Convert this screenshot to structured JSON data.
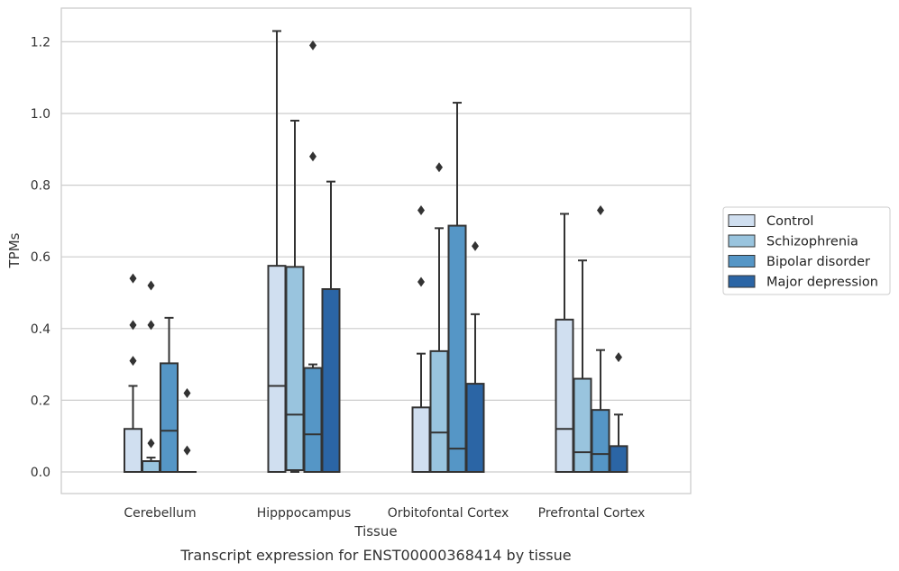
{
  "chart_data": {
    "type": "box",
    "caption": "Transcript expression for ENST00000368414 by tissue",
    "xlabel": "Tissue",
    "ylabel": "TPMs",
    "ylim": [
      -0.06,
      1.29
    ],
    "yticks": [
      "0.0",
      "0.2",
      "0.4",
      "0.6",
      "0.8",
      "1.0",
      "1.2"
    ],
    "grid": "horizontal",
    "legend_position": "right",
    "categories": [
      "Cerebellum",
      "Hipppocampus",
      "Orbitofontal Cortex",
      "Prefrontal Cortex"
    ],
    "series": [
      {
        "name": "Control",
        "color": "#d0dff0",
        "boxes": [
          {
            "q1": 0.0,
            "median": 0.0,
            "q3": 0.12,
            "whisker_low": 0.0,
            "whisker_high": 0.24,
            "outliers": [
              0.31,
              0.41,
              0.54
            ]
          },
          {
            "q1": 0.0,
            "median": 0.24,
            "q3": 0.575,
            "whisker_low": 0.0,
            "whisker_high": 1.23,
            "outliers": []
          },
          {
            "q1": 0.0,
            "median": 0.0,
            "q3": 0.18,
            "whisker_low": 0.0,
            "whisker_high": 0.33,
            "outliers": [
              0.53,
              0.73
            ]
          },
          {
            "q1": 0.0,
            "median": 0.12,
            "q3": 0.425,
            "whisker_low": 0.0,
            "whisker_high": 0.72,
            "outliers": []
          }
        ]
      },
      {
        "name": "Schizophrenia",
        "color": "#99c4de",
        "boxes": [
          {
            "q1": 0.0,
            "median": 0.03,
            "q3": 0.03,
            "whisker_low": 0.0,
            "whisker_high": 0.04,
            "outliers": [
              0.08,
              0.41,
              0.52
            ]
          },
          {
            "q1": 0.005,
            "median": 0.16,
            "q3": 0.572,
            "whisker_low": 0.0,
            "whisker_high": 0.98,
            "outliers": []
          },
          {
            "q1": 0.0,
            "median": 0.11,
            "q3": 0.337,
            "whisker_low": 0.0,
            "whisker_high": 0.68,
            "outliers": [
              0.85
            ]
          },
          {
            "q1": 0.0,
            "median": 0.055,
            "q3": 0.26,
            "whisker_low": 0.0,
            "whisker_high": 0.59,
            "outliers": []
          }
        ]
      },
      {
        "name": "Bipolar disorder",
        "color": "#5596c6",
        "boxes": [
          {
            "q1": 0.0,
            "median": 0.115,
            "q3": 0.303,
            "whisker_low": 0.0,
            "whisker_high": 0.43,
            "outliers": []
          },
          {
            "q1": 0.0,
            "median": 0.105,
            "q3": 0.29,
            "whisker_low": 0.0,
            "whisker_high": 0.3,
            "outliers": [
              0.88,
              1.19
            ]
          },
          {
            "q1": 0.0,
            "median": 0.065,
            "q3": 0.687,
            "whisker_low": 0.0,
            "whisker_high": 1.03,
            "outliers": []
          },
          {
            "q1": 0.0,
            "median": 0.05,
            "q3": 0.173,
            "whisker_low": 0.0,
            "whisker_high": 0.34,
            "outliers": [
              0.73
            ]
          }
        ]
      },
      {
        "name": "Major depression",
        "color": "#2b65a5",
        "boxes": [
          {
            "q1": 0.0,
            "median": 0.0,
            "q3": 0.0,
            "whisker_low": 0.0,
            "whisker_high": 0.0,
            "outliers": [
              0.06,
              0.22
            ]
          },
          {
            "q1": 0.0,
            "median": 0.0,
            "q3": 0.51,
            "whisker_low": 0.0,
            "whisker_high": 0.81,
            "outliers": []
          },
          {
            "q1": 0.0,
            "median": 0.0,
            "q3": 0.246,
            "whisker_low": 0.0,
            "whisker_high": 0.44,
            "outliers": [
              0.63
            ]
          },
          {
            "q1": 0.0,
            "median": 0.0,
            "q3": 0.072,
            "whisker_low": 0.0,
            "whisker_high": 0.16,
            "outliers": [
              0.32
            ]
          }
        ]
      }
    ]
  },
  "colors": {
    "grid": "#cccccc",
    "frame": "#cccccc",
    "line": "#333333",
    "legend_border": "#cccccc"
  }
}
